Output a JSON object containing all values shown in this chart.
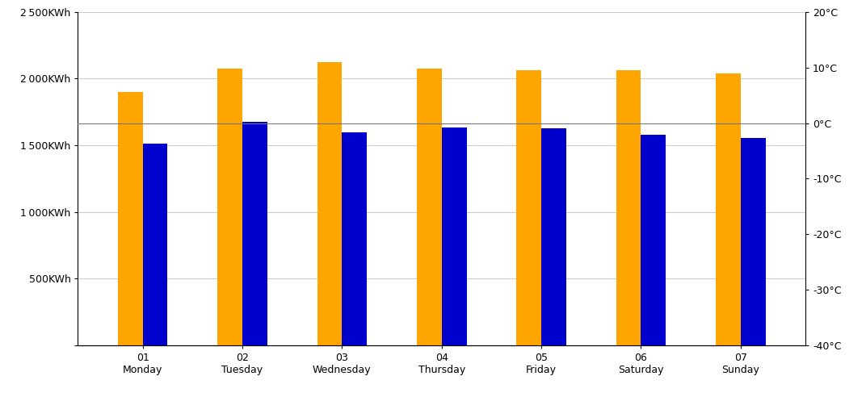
{
  "categories": [
    [
      "01",
      "Monday"
    ],
    [
      "02",
      "Tuesday"
    ],
    [
      "03",
      "Wednesday"
    ],
    [
      "04",
      "Thursday"
    ],
    [
      "05",
      "Friday"
    ],
    [
      "06",
      "Saturday"
    ],
    [
      "07",
      "Sunday"
    ]
  ],
  "orange_values": [
    1900,
    2075,
    2125,
    2075,
    2065,
    2065,
    2040
  ],
  "blue_values": [
    1510,
    1675,
    1595,
    1635,
    1625,
    1580,
    1555
  ],
  "orange_color": "#FFA500",
  "blue_color": "#0000CC",
  "ylim_left": [
    0,
    2500
  ],
  "ylim_right": [
    -40,
    20
  ],
  "yticks_left": [
    0,
    500,
    1000,
    1500,
    2000,
    2500
  ],
  "ytick_labels_left": [
    "",
    "500KWh",
    "1 000KWh",
    "1 500KWh",
    "2 000KWh",
    "2 500KWh"
  ],
  "yticks_right": [
    -40,
    -30,
    -20,
    -10,
    0,
    10,
    20
  ],
  "ytick_labels_right": [
    "-40°C",
    "-30°C",
    "-20°C",
    "-10°C",
    "0°C",
    "10°C",
    "20°C"
  ],
  "bar_width": 0.25,
  "background_color": "#FFFFFF",
  "grid_color": "#CCCCCC",
  "zero_line_color": "#777777",
  "figsize": [
    10.72,
    4.92
  ],
  "dpi": 100
}
